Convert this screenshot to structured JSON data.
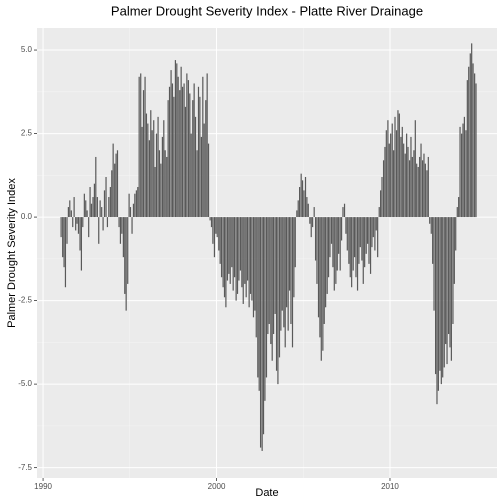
{
  "chart_data": {
    "type": "bar",
    "title": "Palmer Drought Severity Index - Platte River Drainage",
    "x_label": "Date",
    "y_label": "Palmer Drought Severity Index",
    "color": "#595959",
    "grid": true,
    "xlim": [
      1989.65,
      2016.17
    ],
    "ylim": [
      -7.81,
      5.66
    ],
    "xticks": [
      1990,
      2000,
      2010
    ],
    "yticks": [
      {
        "value": -7.5,
        "label": "-7.5"
      },
      {
        "value": -5,
        "label": "-5.0"
      },
      -2.5,
      {
        "value": 0,
        "label": "0.0"
      },
      2.5,
      {
        "value": 5,
        "label": "5.0"
      }
    ],
    "x": [
      1991.04,
      1991.13,
      1991.21,
      1991.29,
      1991.38,
      1991.46,
      1991.54,
      1991.63,
      1991.71,
      1991.79,
      1991.88,
      1991.96,
      1992.04,
      1992.13,
      1992.21,
      1992.29,
      1992.38,
      1992.46,
      1992.54,
      1992.63,
      1992.71,
      1992.79,
      1992.88,
      1992.96,
      1993.04,
      1993.13,
      1993.21,
      1993.29,
      1993.38,
      1993.46,
      1993.54,
      1993.63,
      1993.71,
      1993.79,
      1993.88,
      1993.96,
      1994.04,
      1994.13,
      1994.21,
      1994.29,
      1994.38,
      1994.46,
      1994.54,
      1994.63,
      1994.71,
      1994.79,
      1994.88,
      1994.96,
      1995.04,
      1995.13,
      1995.21,
      1995.29,
      1995.38,
      1995.46,
      1995.54,
      1995.63,
      1995.71,
      1995.79,
      1995.88,
      1995.96,
      1996.04,
      1996.13,
      1996.21,
      1996.29,
      1996.38,
      1996.46,
      1996.54,
      1996.63,
      1996.71,
      1996.79,
      1996.88,
      1996.96,
      1997.04,
      1997.13,
      1997.21,
      1997.29,
      1997.38,
      1997.46,
      1997.54,
      1997.63,
      1997.71,
      1997.79,
      1997.88,
      1997.96,
      1998.04,
      1998.13,
      1998.21,
      1998.29,
      1998.38,
      1998.46,
      1998.54,
      1998.63,
      1998.71,
      1998.79,
      1998.88,
      1998.96,
      1999.04,
      1999.13,
      1999.21,
      1999.29,
      1999.38,
      1999.46,
      1999.54,
      1999.63,
      1999.71,
      1999.79,
      1999.88,
      1999.96,
      2000.04,
      2000.13,
      2000.21,
      2000.29,
      2000.38,
      2000.46,
      2000.54,
      2000.63,
      2000.71,
      2000.79,
      2000.88,
      2000.96,
      2001.04,
      2001.13,
      2001.21,
      2001.29,
      2001.38,
      2001.46,
      2001.54,
      2001.63,
      2001.71,
      2001.79,
      2001.88,
      2001.96,
      2002.04,
      2002.13,
      2002.21,
      2002.29,
      2002.38,
      2002.46,
      2002.54,
      2002.63,
      2002.71,
      2002.79,
      2002.88,
      2002.96,
      2003.04,
      2003.13,
      2003.21,
      2003.29,
      2003.38,
      2003.46,
      2003.54,
      2003.63,
      2003.71,
      2003.79,
      2003.88,
      2003.96,
      2004.04,
      2004.13,
      2004.21,
      2004.29,
      2004.38,
      2004.46,
      2004.54,
      2004.63,
      2004.71,
      2004.79,
      2004.88,
      2004.96,
      2005.04,
      2005.13,
      2005.21,
      2005.29,
      2005.38,
      2005.46,
      2005.54,
      2005.63,
      2005.71,
      2005.79,
      2005.88,
      2005.96,
      2006.04,
      2006.13,
      2006.21,
      2006.29,
      2006.38,
      2006.46,
      2006.54,
      2006.63,
      2006.71,
      2006.79,
      2006.88,
      2006.96,
      2007.04,
      2007.13,
      2007.21,
      2007.29,
      2007.38,
      2007.46,
      2007.54,
      2007.63,
      2007.71,
      2007.79,
      2007.88,
      2007.96,
      2008.04,
      2008.13,
      2008.21,
      2008.29,
      2008.38,
      2008.46,
      2008.54,
      2008.63,
      2008.71,
      2008.79,
      2008.88,
      2008.96,
      2009.04,
      2009.13,
      2009.21,
      2009.29,
      2009.38,
      2009.46,
      2009.54,
      2009.63,
      2009.71,
      2009.79,
      2009.88,
      2009.96,
      2010.04,
      2010.13,
      2010.21,
      2010.29,
      2010.38,
      2010.46,
      2010.54,
      2010.63,
      2010.71,
      2010.79,
      2010.88,
      2010.96,
      2011.04,
      2011.13,
      2011.21,
      2011.29,
      2011.38,
      2011.46,
      2011.54,
      2011.63,
      2011.71,
      2011.79,
      2011.88,
      2011.96,
      2012.04,
      2012.13,
      2012.21,
      2012.29,
      2012.38,
      2012.46,
      2012.54,
      2012.63,
      2012.71,
      2012.79,
      2012.88,
      2012.96,
      2013.04,
      2013.13,
      2013.21,
      2013.29,
      2013.38,
      2013.46,
      2013.54,
      2013.63,
      2013.71,
      2013.79,
      2013.88,
      2013.96,
      2014.04,
      2014.13,
      2014.21,
      2014.29,
      2014.38,
      2014.46,
      2014.54,
      2014.63,
      2014.71,
      2014.79,
      2014.88,
      2014.96
    ],
    "values": [
      -0.6,
      -1.2,
      -1.5,
      -2.1,
      -0.8,
      0.3,
      0.5,
      0.2,
      -0.3,
      0.6,
      -0.4,
      -0.2,
      -0.5,
      -1.0,
      -1.6,
      -0.3,
      0.7,
      0.5,
      0.2,
      -0.6,
      0.9,
      0.4,
      0.6,
      1.0,
      1.8,
      0.6,
      -0.8,
      0.5,
      0.3,
      -0.4,
      0.8,
      1.2,
      -0.3,
      0.6,
      0.9,
      1.4,
      2.2,
      1.6,
      1.9,
      2.0,
      -0.3,
      -0.8,
      -0.5,
      -1.2,
      -2.3,
      -2.8,
      -2.0,
      0.7,
      0.3,
      -0.5,
      0.4,
      0.7,
      0.8,
      0.9,
      4.2,
      4.3,
      2.7,
      3.8,
      4.2,
      3.1,
      2.8,
      2.3,
      3.2,
      2.6,
      2.9,
      1.5,
      2.5,
      3.0,
      2.0,
      1.6,
      2.4,
      2.9,
      2.0,
      1.8,
      3.5,
      3.9,
      4.4,
      4.0,
      3.6,
      4.7,
      4.6,
      4.2,
      3.8,
      4.5,
      3.9,
      4.0,
      3.3,
      4.3,
      4.1,
      3.7,
      2.5,
      3.5,
      4.0,
      3.0,
      2.0,
      3.9,
      3.6,
      2.4,
      4.2,
      2.8,
      3.5,
      4.3,
      2.2,
      -0.1,
      -0.3,
      -0.8,
      -1.2,
      -0.5,
      -0.6,
      -1.0,
      -1.4,
      -1.8,
      -2.1,
      -2.4,
      -2.7,
      -1.9,
      -1.7,
      -2.0,
      -1.5,
      -2.2,
      -1.8,
      -2.5,
      -2.3,
      -1.9,
      -1.6,
      -2.1,
      -2.6,
      -2.0,
      -2.4,
      -1.9,
      -2.7,
      -2.3,
      -2.5,
      -3.0,
      -2.8,
      -3.6,
      -4.8,
      -5.2,
      -6.9,
      -7.0,
      -6.5,
      -5.5,
      -4.8,
      -3.5,
      -3.2,
      -3.8,
      -4.3,
      -3.5,
      -2.9,
      -4.6,
      -5.0,
      -4.2,
      -3.4,
      -2.8,
      -3.3,
      -3.9,
      -2.7,
      -3.4,
      -2.2,
      -3.2,
      -3.9,
      -2.4,
      -1.5,
      0.2,
      0.5,
      0.9,
      1.3,
      1.1,
      0.8,
      1.2,
      0.6,
      0.4,
      -0.2,
      -0.6,
      -0.3,
      0.3,
      -1.3,
      -2.0,
      -3.0,
      -3.6,
      -4.3,
      -4.0,
      -3.2,
      -2.7,
      -2.3,
      -1.8,
      -1.2,
      -0.8,
      -1.5,
      -2.2,
      -2.0,
      -1.6,
      -1.1,
      -1.6,
      -0.7,
      0.3,
      0.4,
      -0.5,
      -1.0,
      -1.4,
      -1.8,
      -2.1,
      -1.6,
      -1.2,
      -1.8,
      -2.2,
      -1.4,
      -0.9,
      -1.3,
      -2.0,
      -1.5,
      -1.1,
      -0.8,
      -1.4,
      -1.7,
      -0.9,
      -0.6,
      -1.0,
      -0.4,
      -1.2,
      0.3,
      0.8,
      1.2,
      1.7,
      2.1,
      2.6,
      2.9,
      2.2,
      2.5,
      2.8,
      2.0,
      3.0,
      2.6,
      3.2,
      3.1,
      2.4,
      2.7,
      2.2,
      1.9,
      2.5,
      2.1,
      1.7,
      2.4,
      1.8,
      2.0,
      2.9,
      1.6,
      1.5,
      1.8,
      2.2,
      1.7,
      1.9,
      1.6,
      1.4,
      1.8,
      -0.2,
      -0.5,
      -1.4,
      -2.8,
      -4.7,
      -5.6,
      -5.2,
      -4.6,
      -5.0,
      -4.8,
      -4.5,
      -3.8,
      -4.4,
      -3.5,
      -3.9,
      -4.3,
      -3.2,
      -2.0,
      -1.0,
      0.3,
      0.6,
      2.7,
      2.5,
      2.8,
      3.0,
      2.6,
      4.1,
      4.5,
      4.9,
      5.2,
      4.6,
      4.3,
      4.0
    ]
  }
}
